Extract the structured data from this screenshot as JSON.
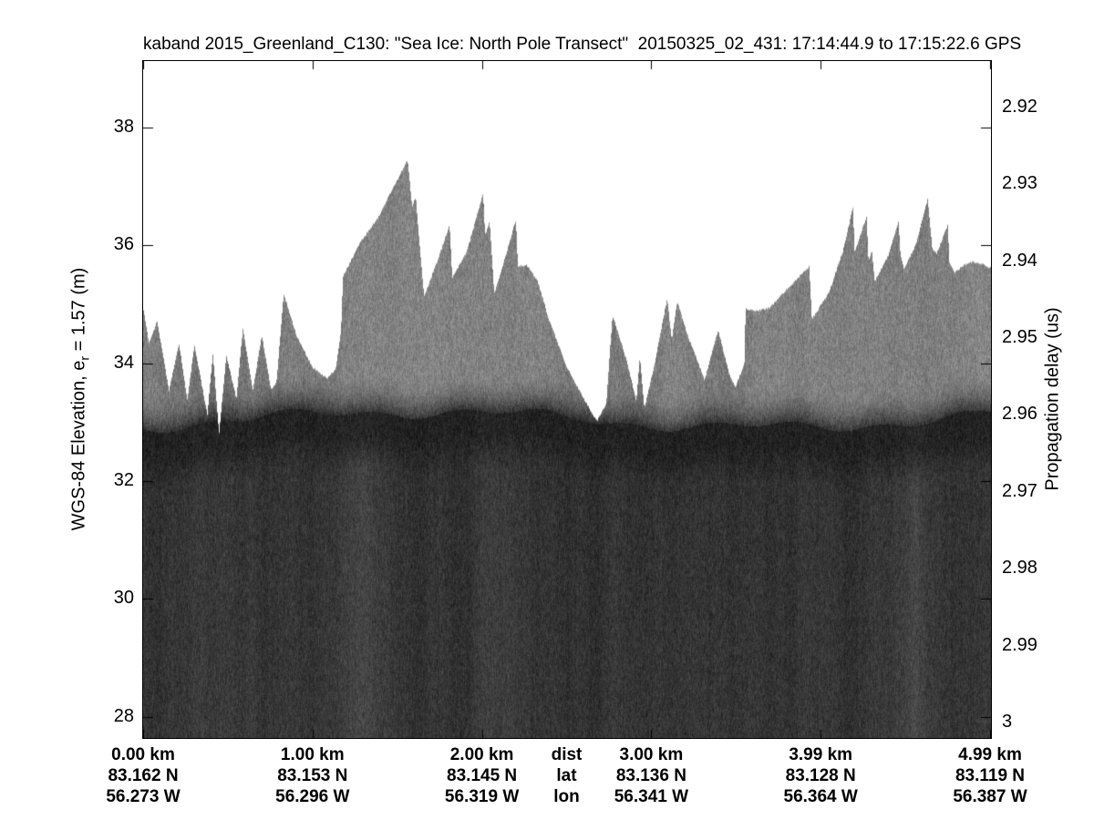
{
  "title": "kaband 2015_Greenland_C130: \"Sea Ice: North Pole Transect\"  20150325_02_431: 17:14:44.9 to 17:15:22.6 GPS",
  "axes": {
    "left": {
      "label_pre": "WGS-84 Elevation, e",
      "label_sub": "r",
      "label_post": " = 1.57 (m)",
      "ticks": [
        38,
        36,
        34,
        32,
        30,
        28
      ],
      "ylim": [
        27.64,
        39.13
      ]
    },
    "right": {
      "label": "Propagation delay (us)",
      "ticks": [
        "2.92",
        "2.93",
        "2.94",
        "2.95",
        "2.96",
        "2.97",
        "2.98",
        "2.99",
        "3"
      ],
      "tick_values": [
        2.92,
        2.93,
        2.94,
        2.95,
        2.96,
        2.97,
        2.98,
        2.99,
        3.0
      ],
      "ylim": [
        2.914,
        3.002
      ]
    },
    "bottom": {
      "legend": {
        "dist": "dist",
        "lat": "lat",
        "lon": "lon"
      },
      "columns": [
        {
          "dist": "0.00 km",
          "lat": "83.162 N",
          "lon": "56.273 W",
          "frac": 0.0
        },
        {
          "dist": "1.00 km",
          "lat": "83.153 N",
          "lon": "56.296 W",
          "frac": 0.2
        },
        {
          "dist": "2.00 km",
          "lat": "83.145 N",
          "lon": "56.319 W",
          "frac": 0.4
        },
        {
          "dist": "3.00 km",
          "lat": "83.136 N",
          "lon": "56.341 W",
          "frac": 0.6
        },
        {
          "dist": "3.99 km",
          "lat": "83.128 N",
          "lon": "56.364 W",
          "frac": 0.8
        },
        {
          "dist": "4.99 km",
          "lat": "83.119 N",
          "lon": "56.387 W",
          "frac": 1.0
        }
      ]
    }
  },
  "chart_data": {
    "type": "heatmap",
    "description": "Ka-band radar altimeter echogram over sea ice; white = no return, mid-gray speckle = snow/ice volume above main scattering interface, dark band = strong surface return, dark speckle = noise below.",
    "title": "kaband 2015_Greenland_C130: \"Sea Ice: North Pole Transect\"  20150325_02_431: 17:14:44.9 to 17:15:22.6 GPS",
    "x_range_km": [
      0,
      4.99
    ],
    "elevation_range_m": [
      27.64,
      39.13
    ],
    "delay_range_us": [
      2.914,
      3.002
    ],
    "interface_elevation_m": 33.05,
    "surface_profile": {
      "x_km": [
        0.0,
        0.032,
        0.08,
        0.15,
        0.209,
        0.258,
        0.3,
        0.376,
        0.408,
        0.445,
        0.488,
        0.547,
        0.585,
        0.644,
        0.697,
        0.751,
        0.783,
        0.826,
        0.901,
        0.993,
        1.078,
        1.132,
        1.164,
        1.175,
        1.277,
        1.384,
        1.481,
        1.556,
        1.583,
        1.604,
        1.626,
        1.653,
        1.733,
        1.803,
        1.819,
        1.905,
        2.001,
        2.012,
        2.039,
        2.066,
        2.135,
        2.194,
        2.205,
        2.259,
        2.323,
        2.388,
        2.495,
        2.602,
        2.672,
        2.726,
        2.763,
        2.849,
        2.903,
        2.924,
        2.951,
        3.01,
        3.085,
        3.112,
        3.144,
        3.209,
        3.278,
        3.305,
        3.386,
        3.45,
        3.488,
        3.541,
        3.547,
        3.611,
        3.692,
        3.799,
        3.922,
        3.938,
        4.04,
        4.121,
        4.18,
        4.19,
        4.26,
        4.271,
        4.292,
        4.308,
        4.389,
        4.448,
        4.459,
        4.48,
        4.55,
        4.62,
        4.647,
        4.673,
        4.738,
        4.748,
        4.781,
        4.834,
        4.888,
        4.942,
        4.99
      ],
      "elevation_m": [
        34.91,
        34.34,
        34.72,
        33.55,
        34.34,
        33.39,
        34.32,
        33.13,
        34.17,
        32.82,
        34.14,
        33.41,
        34.6,
        33.55,
        34.48,
        33.56,
        33.67,
        35.19,
        34.48,
        33.95,
        33.75,
        33.9,
        34.57,
        35.48,
        36.06,
        36.49,
        37.04,
        37.46,
        36.67,
        36.83,
        36.04,
        35.14,
        35.76,
        36.35,
        35.45,
        35.91,
        36.89,
        36.18,
        36.42,
        35.19,
        35.84,
        36.45,
        35.65,
        35.67,
        35.4,
        34.75,
        33.94,
        33.36,
        33.02,
        33.32,
        34.83,
        34.03,
        33.36,
        34.14,
        33.24,
        33.98,
        35.11,
        34.4,
        35.06,
        34.45,
        33.94,
        33.72,
        34.57,
        33.83,
        33.61,
        34.01,
        34.94,
        34.89,
        34.95,
        35.29,
        35.65,
        34.75,
        35.22,
        35.91,
        36.66,
        35.88,
        36.5,
        35.76,
        35.91,
        35.4,
        35.84,
        36.42,
        35.88,
        35.6,
        36.02,
        36.79,
        35.96,
        35.87,
        36.35,
        35.73,
        35.55,
        35.67,
        35.73,
        35.69,
        35.63
      ]
    }
  },
  "texture": {
    "background": "#ffffff",
    "surface_gray": "#818181",
    "band_gray": "#1d1d1d",
    "deep_gray": "#323232"
  }
}
